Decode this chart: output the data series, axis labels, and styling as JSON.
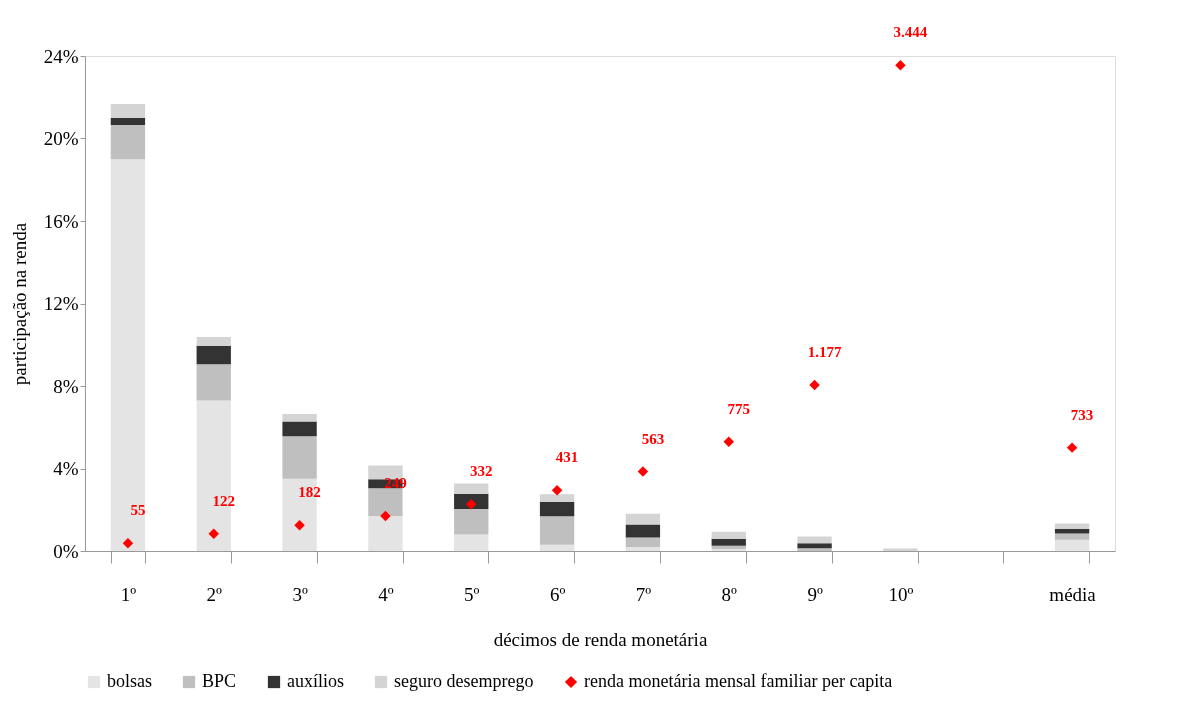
{
  "chart_data": {
    "type": "bar",
    "stacked": true,
    "xlabel": "décimos de renda monetária",
    "ylabel": "participação na renda",
    "categories": [
      "1º",
      "2º",
      "3º",
      "4º",
      "5º",
      "6º",
      "7º",
      "8º",
      "9º",
      "10º",
      null,
      "média"
    ],
    "series": [
      {
        "name": "bolsas",
        "color": "#e4e4e4",
        "values": [
          19.0,
          7.3,
          3.5,
          1.7,
          0.8,
          0.3,
          0.2,
          0.1,
          null,
          null,
          null,
          0.55
        ]
      },
      {
        "name": "BPC",
        "color": "#bfbfbf",
        "values": [
          1.65,
          1.76,
          2.06,
          1.34,
          1.24,
          1.38,
          0.45,
          0.15,
          0.13,
          null,
          null,
          0.3
        ]
      },
      {
        "name": "auxílios",
        "color": "#333333",
        "values": [
          0.36,
          0.89,
          0.72,
          0.44,
          0.74,
          0.69,
          0.63,
          0.35,
          0.24,
          null,
          null,
          0.23
        ]
      },
      {
        "name": "seguro desemprego",
        "color": "#d4d4d4",
        "values": [
          0.66,
          0.43,
          0.36,
          0.66,
          0.49,
          0.38,
          0.53,
          0.33,
          0.33,
          0.12,
          null,
          0.25
        ]
      },
      {
        "name": "renda monetária mensal familiar per capita",
        "type": "scatter",
        "axis": "y2",
        "marker": "diamond",
        "color": "#ff0000",
        "values": [
          55,
          122,
          182,
          249,
          332,
          431,
          563,
          775,
          1177,
          3444,
          null,
          733
        ],
        "value_labels": [
          "55",
          "122",
          "182",
          "249",
          "332",
          "431",
          "563",
          "775",
          "1.177",
          "3.444",
          null,
          "733"
        ]
      }
    ],
    "ylim": [
      0,
      24
    ],
    "yticks": [
      {
        "value": 0,
        "label": "0%"
      },
      {
        "value": 4,
        "label": "4%"
      },
      {
        "value": 8,
        "label": "8%"
      },
      {
        "value": 12,
        "label": "12%"
      },
      {
        "value": 16,
        "label": "16%"
      },
      {
        "value": 20,
        "label": "20%"
      },
      {
        "value": 24,
        "label": "24%"
      }
    ],
    "y2lim": [
      0,
      3510
    ],
    "tick_labels": "xy",
    "grid": false,
    "legend": "bottom"
  }
}
